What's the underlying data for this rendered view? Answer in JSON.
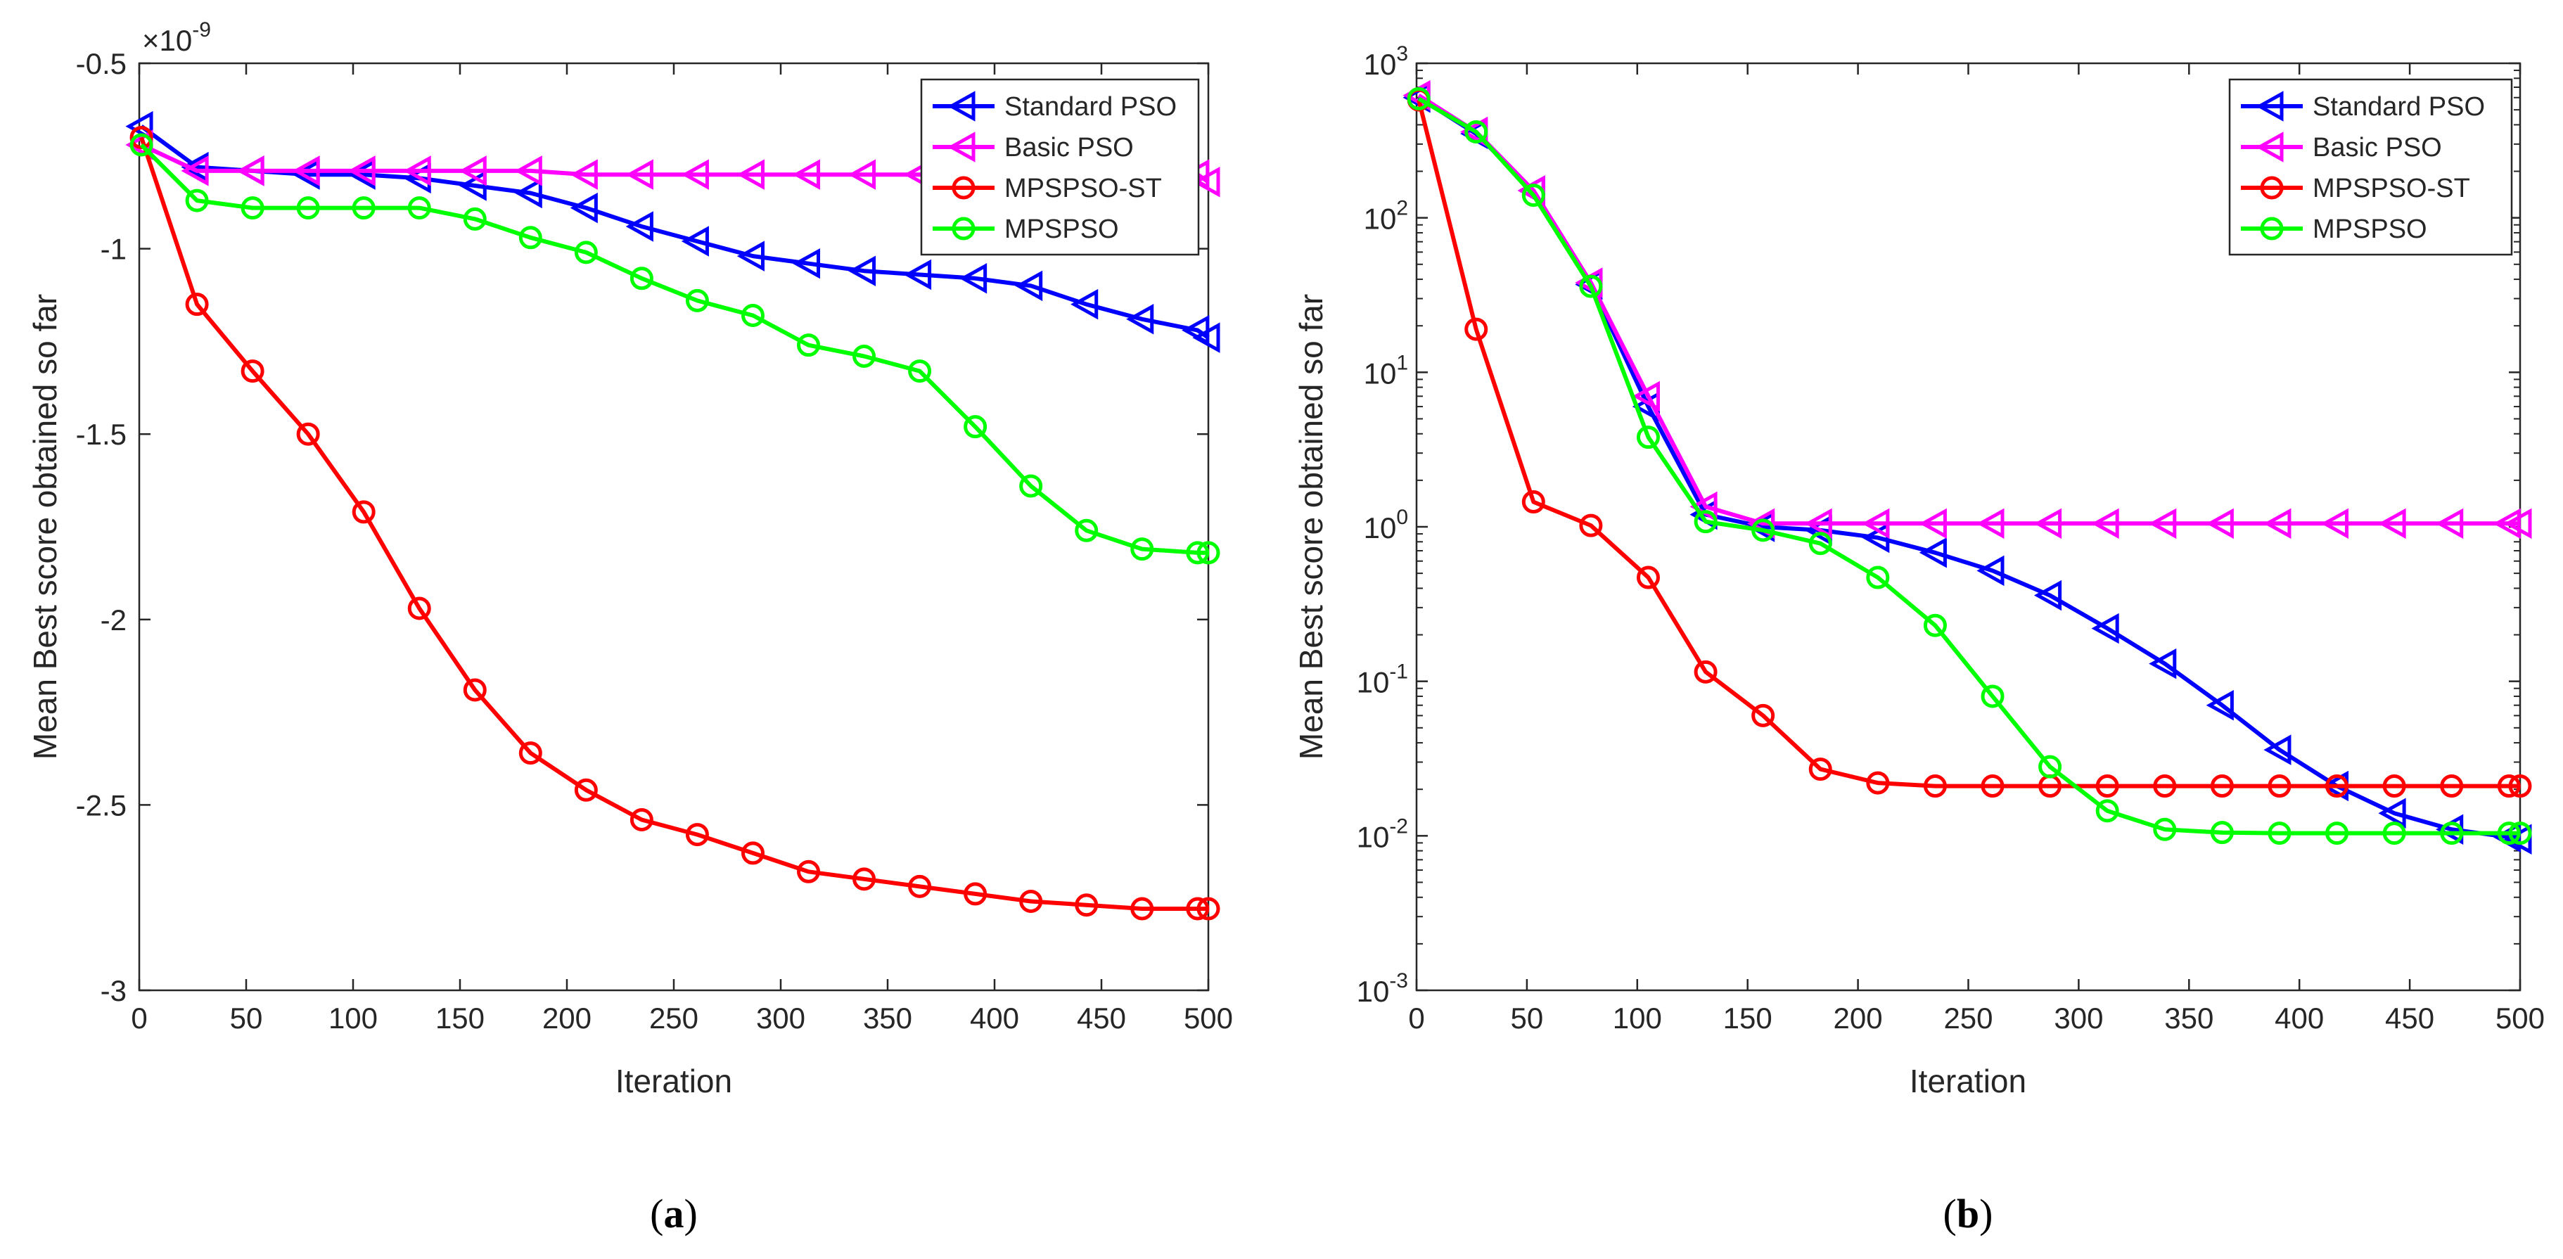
{
  "panels": [
    {
      "label": "a",
      "chart_data": {
        "type": "line",
        "xlabel": "Iteration",
        "ylabel": "Mean Best score obtained so far",
        "xlim": [
          0,
          500
        ],
        "ylim": [
          -3,
          -0.5
        ],
        "yscale": "linear",
        "exponent_label": "×10",
        "exponent_value": "-9",
        "x_ticks": [
          "0",
          "50",
          "100",
          "150",
          "200",
          "250",
          "300",
          "350",
          "400",
          "450",
          "500"
        ],
        "y_ticks": [
          "-0.5",
          "-1",
          "-1.5",
          "-2",
          "-2.5",
          "-3"
        ],
        "legend_position": "top-right",
        "x": [
          1,
          27,
          53,
          79,
          105,
          131,
          157,
          183,
          209,
          235,
          261,
          287,
          313,
          339,
          365,
          391,
          417,
          443,
          469,
          495,
          500
        ],
        "series": [
          {
            "name": "Standard PSO",
            "color": "#0000ff",
            "marker": "triangle-left",
            "values": [
              -0.67,
              -0.78,
              -0.79,
              -0.8,
              -0.8,
              -0.81,
              -0.83,
              -0.85,
              -0.89,
              -0.94,
              -0.98,
              -1.02,
              -1.04,
              -1.06,
              -1.07,
              -1.08,
              -1.1,
              -1.15,
              -1.19,
              -1.22,
              -1.24
            ]
          },
          {
            "name": "Basic PSO",
            "color": "#ff00ff",
            "marker": "triangle-left",
            "values": [
              -0.72,
              -0.79,
              -0.79,
              -0.79,
              -0.79,
              -0.79,
              -0.79,
              -0.79,
              -0.8,
              -0.8,
              -0.8,
              -0.8,
              -0.8,
              -0.8,
              -0.8,
              -0.8,
              -0.8,
              -0.8,
              -0.8,
              -0.8,
              -0.82
            ]
          },
          {
            "name": "MPSPSO-ST",
            "color": "#ff0000",
            "marker": "circle",
            "values": [
              -0.7,
              -1.15,
              -1.33,
              -1.5,
              -1.71,
              -1.97,
              -2.19,
              -2.36,
              -2.46,
              -2.54,
              -2.58,
              -2.63,
              -2.68,
              -2.7,
              -2.72,
              -2.74,
              -2.76,
              -2.77,
              -2.78,
              -2.78,
              -2.78
            ]
          },
          {
            "name": "MPSPSO",
            "color": "#00ff00",
            "marker": "circle",
            "values": [
              -0.72,
              -0.87,
              -0.89,
              -0.89,
              -0.89,
              -0.89,
              -0.92,
              -0.97,
              -1.01,
              -1.08,
              -1.14,
              -1.18,
              -1.26,
              -1.29,
              -1.33,
              -1.48,
              -1.64,
              -1.76,
              -1.81,
              -1.82,
              -1.82
            ]
          }
        ]
      }
    },
    {
      "label": "b",
      "chart_data": {
        "type": "line",
        "xlabel": "Iteration",
        "ylabel": "Mean Best score obtained so far",
        "xlim": [
          0,
          500
        ],
        "ylim": [
          0.001,
          1000
        ],
        "yscale": "log",
        "x_ticks": [
          "0",
          "50",
          "100",
          "150",
          "200",
          "250",
          "300",
          "350",
          "400",
          "450",
          "500"
        ],
        "y_ticks": [
          {
            "base": "10",
            "exp": "3",
            "value": 1000
          },
          {
            "base": "10",
            "exp": "2",
            "value": 100
          },
          {
            "base": "10",
            "exp": "1",
            "value": 10
          },
          {
            "base": "10",
            "exp": "0",
            "value": 1
          },
          {
            "base": "10",
            "exp": "-1",
            "value": 0.1
          },
          {
            "base": "10",
            "exp": "-2",
            "value": 0.01
          },
          {
            "base": "10",
            "exp": "-3",
            "value": 0.001
          }
        ],
        "legend_position": "top-right",
        "x": [
          1,
          27,
          53,
          79,
          105,
          131,
          157,
          183,
          209,
          235,
          261,
          287,
          313,
          339,
          365,
          391,
          417,
          443,
          469,
          495,
          500
        ],
        "series": [
          {
            "name": "Standard PSO",
            "color": "#0000ff",
            "marker": "triangle-left",
            "values": [
              600,
              350,
              150,
              37,
              6,
              1.2,
              1.0,
              0.95,
              0.85,
              0.68,
              0.52,
              0.36,
              0.22,
              0.13,
              0.07,
              0.036,
              0.021,
              0.014,
              0.011,
              0.0098,
              0.0095
            ]
          },
          {
            "name": "Basic PSO",
            "color": "#ff00ff",
            "marker": "triangle-left",
            "values": [
              620,
              360,
              150,
              38,
              7,
              1.35,
              1.05,
              1.05,
              1.05,
              1.05,
              1.05,
              1.05,
              1.05,
              1.05,
              1.05,
              1.05,
              1.05,
              1.05,
              1.05,
              1.05,
              1.05
            ]
          },
          {
            "name": "MPSPSO-ST",
            "color": "#ff0000",
            "marker": "circle",
            "values": [
              580,
              19,
              1.45,
              1.02,
              0.47,
              0.115,
              0.06,
              0.027,
              0.022,
              0.021,
              0.021,
              0.021,
              0.021,
              0.021,
              0.021,
              0.021,
              0.021,
              0.021,
              0.021,
              0.021,
              0.021
            ]
          },
          {
            "name": "MPSPSO",
            "color": "#00ff00",
            "marker": "circle",
            "values": [
              590,
              360,
              140,
              36,
              3.8,
              1.08,
              0.95,
              0.78,
              0.47,
              0.23,
              0.08,
              0.028,
              0.0145,
              0.011,
              0.0105,
              0.0104,
              0.0104,
              0.0104,
              0.0104,
              0.0104,
              0.0104
            ]
          }
        ]
      }
    }
  ]
}
